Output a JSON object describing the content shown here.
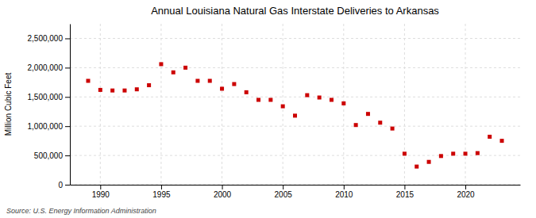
{
  "chart_data": {
    "type": "scatter",
    "title": "Annual Louisiana Natural Gas Interstate Deliveries to Arkansas",
    "ylabel": "Million Cubic Feet",
    "source": "Source: U.S. Energy Information Administration",
    "x": [
      1989,
      1990,
      1991,
      1992,
      1993,
      1994,
      1995,
      1996,
      1997,
      1998,
      1999,
      2000,
      2001,
      2002,
      2003,
      2004,
      2005,
      2006,
      2007,
      2008,
      2009,
      2010,
      2011,
      2012,
      2013,
      2014,
      2015,
      2016,
      2017,
      2018,
      2019,
      2020,
      2021,
      2022,
      2023
    ],
    "values": [
      1775000,
      1620000,
      1610000,
      1610000,
      1630000,
      1700000,
      2060000,
      1920000,
      2000000,
      1775000,
      1775000,
      1640000,
      1720000,
      1580000,
      1450000,
      1450000,
      1340000,
      1180000,
      1530000,
      1490000,
      1450000,
      1390000,
      1020000,
      1210000,
      1060000,
      960000,
      530000,
      310000,
      390000,
      490000,
      530000,
      530000,
      540000,
      820000,
      750000
    ],
    "color": "#cc0000",
    "marker": "square",
    "grid": true,
    "xlim": [
      1987.5,
      2024.5
    ],
    "xticks": [
      1990,
      1995,
      2000,
      2005,
      2010,
      2015,
      2020
    ],
    "ylim": [
      0,
      2750000
    ],
    "yticks": [
      0,
      {
        "value": 500000,
        "label": "500,000"
      },
      {
        "value": 1000000,
        "label": "1,000,000"
      },
      {
        "value": 1500000,
        "label": "1,500,000"
      },
      {
        "value": 2000000,
        "label": "2,000,000"
      },
      {
        "value": 2500000,
        "label": "2,500,000"
      }
    ]
  }
}
